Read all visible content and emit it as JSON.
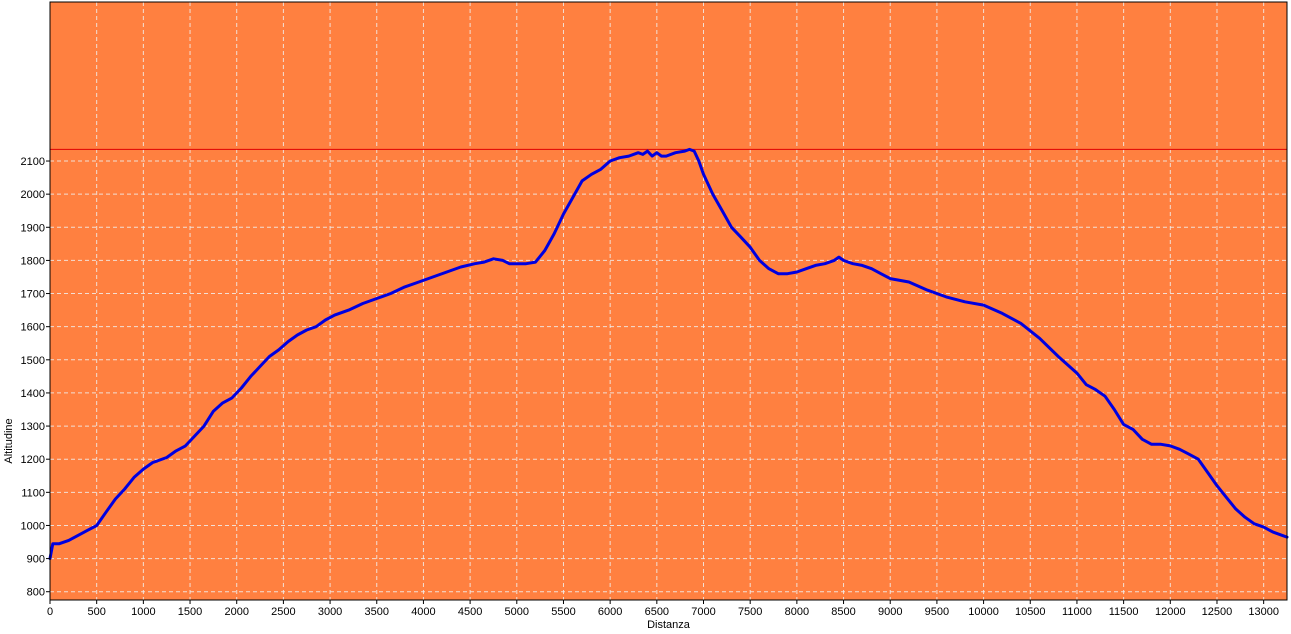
{
  "chart_data": {
    "type": "line",
    "title": "",
    "xlabel": "Distanza",
    "ylabel": "Altitudine",
    "xlim": [
      0,
      13250
    ],
    "ylim": [
      775,
      2580
    ],
    "grid": true,
    "x_ticks": [
      0,
      500,
      1000,
      1500,
      2000,
      2500,
      3000,
      3500,
      4000,
      4500,
      5000,
      5500,
      6000,
      6500,
      7000,
      7500,
      8000,
      8500,
      9000,
      9500,
      10000,
      10500,
      11000,
      11500,
      12000,
      12500,
      13000
    ],
    "y_ticks": [
      800,
      900,
      1000,
      1100,
      1200,
      1300,
      1400,
      1500,
      1600,
      1700,
      1800,
      1900,
      2000,
      2100
    ],
    "reference_line": {
      "y": 2135,
      "color": "#e00000"
    },
    "colors": {
      "plot_background": "#ff8040",
      "line": "#0000e0",
      "grid": "#f0f0f0"
    },
    "series": [
      {
        "x": [
          0,
          30,
          60,
          100,
          200,
          300,
          400,
          500,
          600,
          700,
          800,
          900,
          1000,
          1100,
          1150,
          1250,
          1350,
          1450,
          1550,
          1650,
          1750,
          1850,
          1950,
          2050,
          2150,
          2250,
          2350,
          2450,
          2550,
          2650,
          2750,
          2850,
          2950,
          3050,
          3200,
          3350,
          3500,
          3650,
          3800,
          3950,
          4100,
          4250,
          4400,
          4550,
          4650,
          4750,
          4850,
          4920,
          5000,
          5100,
          5200,
          5300,
          5400,
          5500,
          5600,
          5700,
          5800,
          5900,
          6000,
          6100,
          6200,
          6300,
          6350,
          6400,
          6450,
          6500,
          6550,
          6600,
          6700,
          6800,
          6850,
          6900,
          6950,
          7000,
          7100,
          7200,
          7300,
          7400,
          7500,
          7600,
          7700,
          7800,
          7900,
          8000,
          8100,
          8200,
          8300,
          8400,
          8450,
          8500,
          8550,
          8600,
          8700,
          8800,
          8900,
          9000,
          9200,
          9400,
          9600,
          9800,
          10000,
          10200,
          10400,
          10600,
          10800,
          11000,
          11100,
          11200,
          11300,
          11400,
          11500,
          11600,
          11700,
          11800,
          11900,
          12000,
          12100,
          12200,
          12300,
          12400,
          12500,
          12600,
          12700,
          12800,
          12900,
          13000,
          13100,
          13200,
          13250
        ],
        "y": [
          900,
          945,
          945,
          945,
          955,
          970,
          985,
          1000,
          1040,
          1080,
          1110,
          1145,
          1170,
          1190,
          1195,
          1205,
          1225,
          1240,
          1270,
          1300,
          1345,
          1370,
          1385,
          1415,
          1450,
          1480,
          1510,
          1530,
          1555,
          1575,
          1590,
          1600,
          1620,
          1635,
          1650,
          1670,
          1685,
          1700,
          1720,
          1735,
          1750,
          1765,
          1780,
          1790,
          1795,
          1805,
          1800,
          1790,
          1790,
          1790,
          1795,
          1830,
          1880,
          1940,
          1990,
          2040,
          2060,
          2075,
          2100,
          2110,
          2115,
          2125,
          2120,
          2130,
          2115,
          2125,
          2115,
          2115,
          2125,
          2130,
          2135,
          2130,
          2100,
          2060,
          2000,
          1950,
          1900,
          1870,
          1840,
          1800,
          1775,
          1760,
          1760,
          1765,
          1775,
          1785,
          1790,
          1800,
          1810,
          1800,
          1795,
          1790,
          1785,
          1775,
          1760,
          1745,
          1735,
          1710,
          1690,
          1675,
          1665,
          1640,
          1610,
          1565,
          1510,
          1460,
          1425,
          1410,
          1390,
          1350,
          1305,
          1290,
          1260,
          1245,
          1245,
          1240,
          1230,
          1215,
          1200,
          1160,
          1120,
          1085,
          1050,
          1025,
          1005,
          995,
          980,
          970,
          965
        ]
      }
    ]
  }
}
